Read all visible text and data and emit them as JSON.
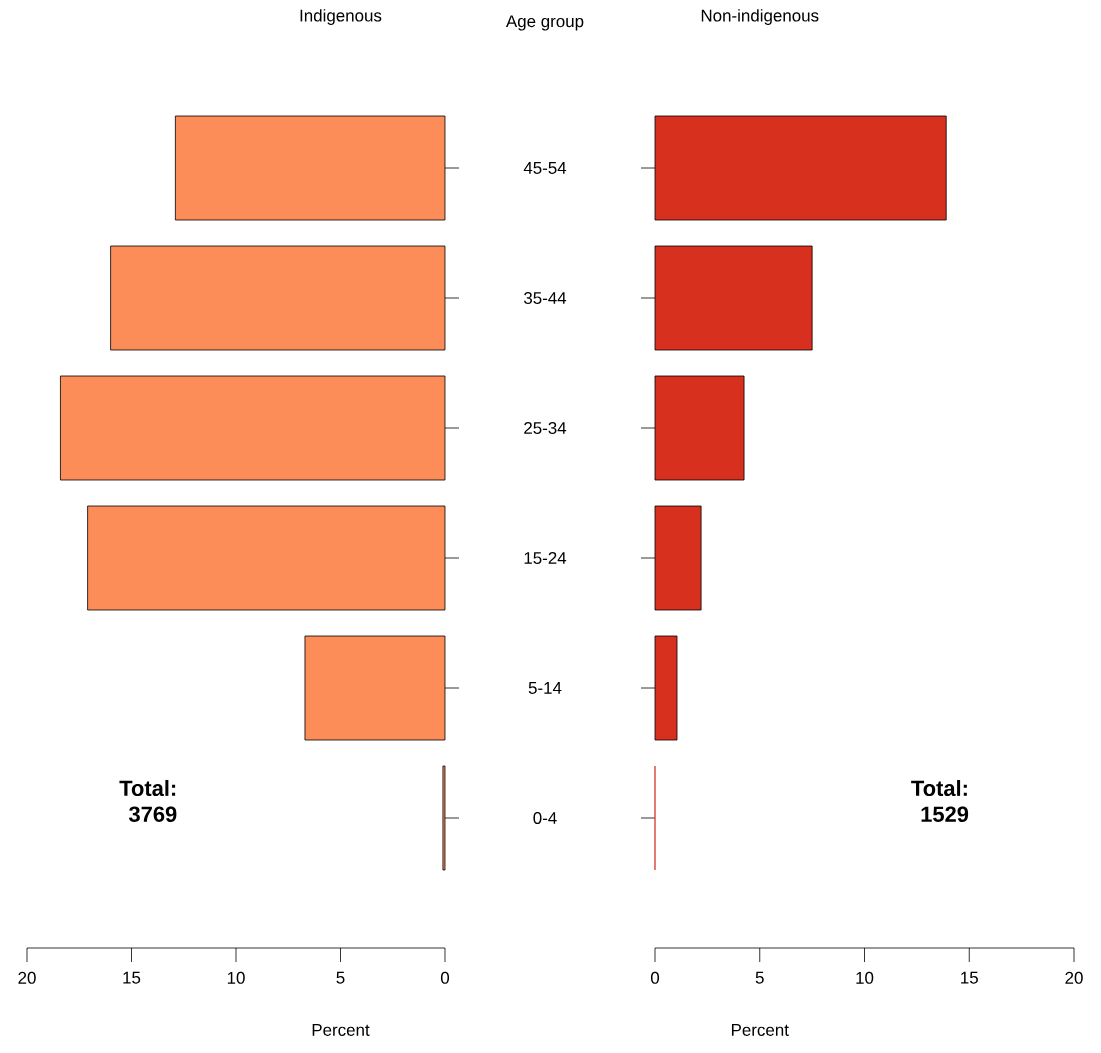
{
  "chart_data": [
    {
      "type": "bar",
      "orientation": "horizontal",
      "title": "Indigenous",
      "ylabel": "Age group",
      "xlabel": "Percent",
      "categories": [
        "45-54",
        "35-44",
        "25-34",
        "15-24",
        "5-14",
        "0-4"
      ],
      "values": [
        12.9,
        16.0,
        18.4,
        17.1,
        6.7,
        0.1
      ],
      "color": "#fc8d59",
      "xlim": [
        20,
        0
      ],
      "xticks": [
        20,
        15,
        10,
        5,
        0
      ],
      "annotations": [
        "Total:",
        "3769"
      ]
    },
    {
      "type": "bar",
      "orientation": "horizontal",
      "title": "Non-indigenous",
      "xlabel": "Percent",
      "categories": [
        null,
        null,
        null,
        null,
        null,
        null
      ],
      "values": [
        13.9,
        7.5,
        4.25,
        2.2,
        1.05,
        0
      ],
      "color": "#d7301f",
      "xlim": [
        0,
        20
      ],
      "xticks": [
        0,
        5,
        10,
        15,
        20
      ],
      "annotations": [
        "Total:",
        "1529"
      ]
    }
  ]
}
